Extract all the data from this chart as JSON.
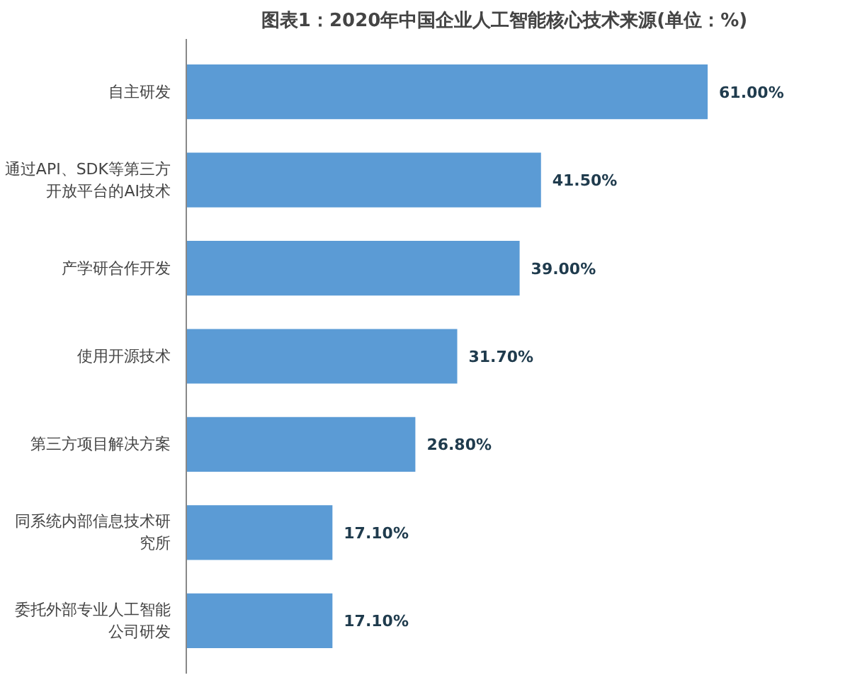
{
  "chart_data": {
    "type": "bar",
    "orientation": "horizontal",
    "title": "图表1：2020年中国企业人工智能核心技术来源(单位：%)",
    "categories": [
      "自主研发",
      "通过API、SDK等第三方开放平台的AI技术",
      "产学研合作开发",
      "使用开源技术",
      "第三方项目解决方案",
      "同系统内部信息技术研究所",
      "委托外部专业人工智能公司研发"
    ],
    "values": [
      61.0,
      41.5,
      39.0,
      31.7,
      26.8,
      17.1,
      17.1
    ],
    "value_labels": [
      "61.00%",
      "41.50%",
      "39.00%",
      "31.70%",
      "26.80%",
      "17.10%",
      "17.10%"
    ],
    "color": "#5b9bd5",
    "grid": false
  }
}
